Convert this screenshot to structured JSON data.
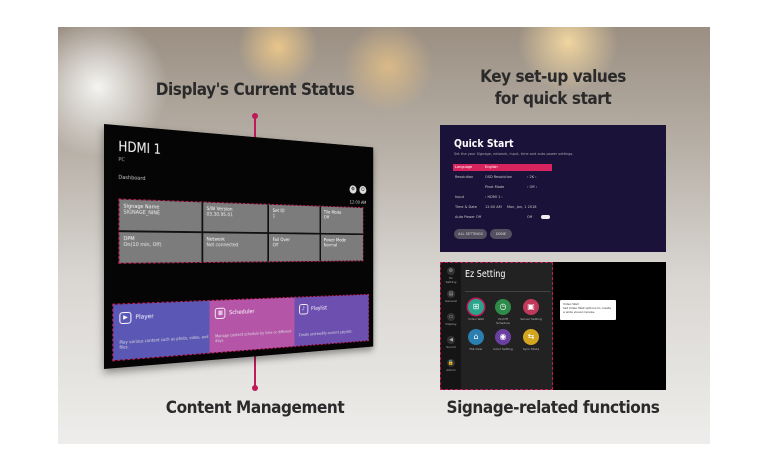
{
  "headings": {
    "status": "Display's Current Status",
    "setup_line1": "Key set-up values",
    "setup_line2": "for quick start",
    "content": "Content Management",
    "signage": "Signage-related functions"
  },
  "colors": {
    "accent": "#c0195a",
    "player": "#5b57b5",
    "scheduler": "#b455a8",
    "playlist": "#6d4fb0",
    "quickstart_bg": "#1a1238"
  },
  "dashboard": {
    "input": "HDMI 1",
    "input_sub": "PC",
    "label": "Dashboard",
    "clock": "12:00 AM",
    "tiles": [
      {
        "icon": "signage-icon",
        "title": "Signage Name",
        "value": "SIGNAGE_NINE"
      },
      {
        "icon": "software-icon",
        "title": "S/W Version",
        "value": "03.30.95.01"
      },
      {
        "icon": "id-icon",
        "title": "Set ID",
        "value": "1"
      },
      {
        "icon": "tile-icon",
        "title": "Tile Mode",
        "value": "Off"
      },
      {
        "icon": "power-icon",
        "title": "DPM",
        "value": "On(10 min, Off)"
      },
      {
        "icon": "network-icon",
        "title": "Network",
        "value": "Not connected"
      },
      {
        "icon": "failover-icon",
        "title": "Fail Over",
        "value": "Off"
      },
      {
        "icon": "power-mode-icon",
        "title": "Power Mode",
        "value": "Normal"
      }
    ],
    "cards": [
      {
        "name": "Player",
        "desc": "Play various content such as photo, video, and files."
      },
      {
        "name": "Scheduler",
        "desc": "Manage content schedule by time or different days."
      },
      {
        "name": "Playlist",
        "desc": "Create and modify content playlists."
      }
    ]
  },
  "quick_start": {
    "title": "Quick Start",
    "subtitle": "Set the your Signage, network, input, time and auto power settings.",
    "rows": [
      {
        "label": "Language",
        "col2": "English",
        "value": ""
      },
      {
        "label": "Resolution",
        "col2": "OSD Resolution",
        "value": "‹ 2K ›"
      },
      {
        "label": "",
        "col2": "Pivot Mode",
        "value": "‹ Off ›"
      },
      {
        "label": "Input",
        "col2": "‹ HDMI 1 ›",
        "value": ""
      },
      {
        "label": "Time & Date",
        "col2": "12:00 AM",
        "value": "Mon, Jan, 1 2018"
      },
      {
        "label": "Auto Power Off",
        "col2": "",
        "value": "Off"
      }
    ],
    "buttons": [
      "ALL SETTINGS",
      "DONE"
    ]
  },
  "ez_setting": {
    "title": "Ez Setting",
    "sidebar": [
      "Ez Setting",
      "General",
      "Display",
      "Sound",
      "Admin"
    ],
    "apps": [
      {
        "label": "Video Wall",
        "color": "#2aa58c"
      },
      {
        "label": "On/Off Schedule",
        "color": "#2e8b4a"
      },
      {
        "label": "Server Setting",
        "color": "#c0395a"
      },
      {
        "label": "Fail Over",
        "color": "#2a7fb0"
      },
      {
        "label": "Color Setting",
        "color": "#6a3fa0"
      },
      {
        "label": "Sync Mode",
        "color": "#d4a520"
      }
    ],
    "popup": {
      "title": "Video Wall",
      "text": "Set Video Wall options to create a wide visual canvas."
    }
  }
}
